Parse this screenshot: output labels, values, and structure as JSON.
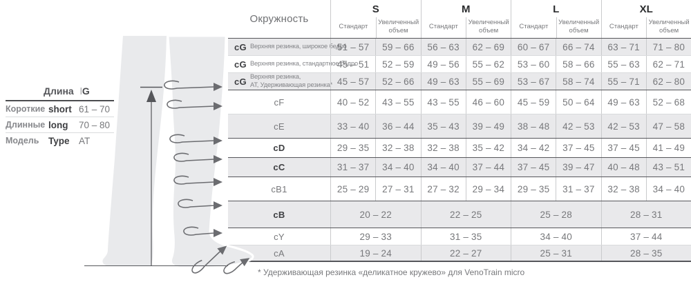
{
  "legend": {
    "title_label": "Длина",
    "code_prefix": "l",
    "code_letter": "G",
    "rows": [
      {
        "ru": "Короткие",
        "en": "short",
        "value": "61 – 70"
      },
      {
        "ru": "Длинные",
        "en": "long",
        "value": "70 – 80"
      },
      {
        "ru": "Модель",
        "en": "Type",
        "value": "AT"
      }
    ]
  },
  "table": {
    "corner_label": "Окружность",
    "sizes": [
      "S",
      "M",
      "L",
      "XL"
    ],
    "subheaders": [
      "Стандарт",
      "Увеличенный объем"
    ],
    "rows": [
      {
        "code": "cG",
        "code_bold": true,
        "desc": "Верхняя резинка, широкое бедро",
        "shaded": true,
        "values": [
          "51 – 57",
          "59 – 66",
          "56 – 63",
          "62 – 69",
          "60 – 67",
          "66 – 74",
          "63 – 71",
          "71 – 80"
        ]
      },
      {
        "code": "cG",
        "code_bold": true,
        "desc": "Верхняя резинка, стандартное бедро",
        "shaded": false,
        "values": [
          "45 – 51",
          "52 – 59",
          "49 – 56",
          "55 – 62",
          "53 – 60",
          "58 – 66",
          "55 – 63",
          "62 – 71"
        ]
      },
      {
        "code": "cG",
        "code_bold": true,
        "desc_lines": [
          "Верхняя резинка,",
          "AT, Удерживающая резинка*"
        ],
        "shaded": true,
        "values": [
          "45 – 57",
          "52 – 66",
          "49 – 63",
          "55 – 69",
          "53 – 67",
          "58 – 74",
          "55 – 71",
          "62 – 80"
        ]
      },
      {
        "code": "cF",
        "shaded": false,
        "values": [
          "40 – 52",
          "43 – 55",
          "43 – 55",
          "46 – 60",
          "45 – 59",
          "50 – 64",
          "49 – 63",
          "52 – 68"
        ]
      },
      {
        "code": "cE",
        "shaded": true,
        "values": [
          "33 – 40",
          "36 – 44",
          "35 – 43",
          "39 – 49",
          "38 – 48",
          "42 – 53",
          "42 – 53",
          "47 – 58"
        ]
      },
      {
        "code": "cD",
        "code_bold": true,
        "shaded": false,
        "values": [
          "29 – 35",
          "32 – 38",
          "32 – 38",
          "35 – 42",
          "34 – 42",
          "37 – 45",
          "37 – 45",
          "41 – 49"
        ]
      },
      {
        "code": "cC",
        "code_bold": true,
        "shaded": true,
        "values": [
          "31 – 37",
          "34 – 40",
          "34 – 40",
          "37 – 44",
          "37 – 45",
          "39 – 47",
          "40 – 48",
          "43 – 51"
        ]
      },
      {
        "code": "cB1",
        "shaded": false,
        "values": [
          "25 – 29",
          "27 – 31",
          "27 – 32",
          "29 – 34",
          "29 – 35",
          "31 – 37",
          "32 – 38",
          "34 – 40"
        ]
      },
      {
        "code": "cB",
        "code_bold": true,
        "shaded": true,
        "merged": true,
        "values": [
          "20 – 22",
          "22 – 25",
          "25 – 28",
          "28 – 31"
        ]
      },
      {
        "code": "cY",
        "shaded": false,
        "merged": true,
        "values": [
          "29 – 33",
          "31 – 35",
          "34 – 40",
          "37 – 44"
        ]
      },
      {
        "code": "cA",
        "shaded": true,
        "merged": true,
        "values": [
          "19 – 24",
          "22 – 27",
          "25 – 31",
          "28 – 35"
        ]
      }
    ]
  },
  "footnote": "* Удерживающая резинка «деликатное кружево» для VenoTrain micro",
  "colors": {
    "row_shade": "#e9e9eb",
    "leg_fill": "#e9eaec",
    "border_light": "#c9cacc",
    "border_dark": "#55565a",
    "text_gray": "#77787b",
    "text_dark": "#3e3f42",
    "arrow": "#6b6c70"
  }
}
